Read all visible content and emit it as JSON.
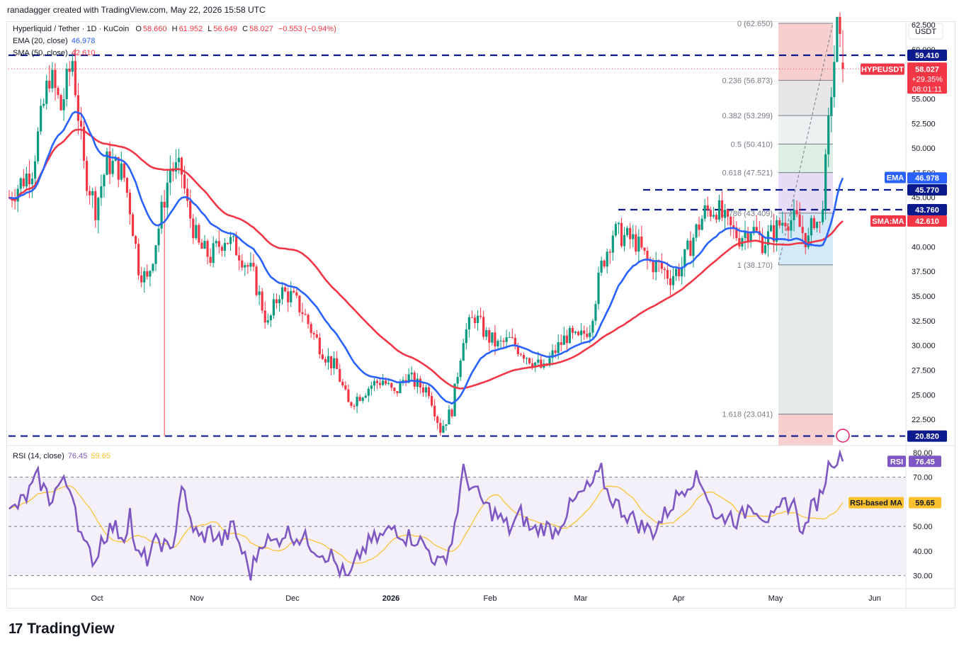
{
  "header": {
    "text": "ranadagger created with TradingView.com, May 22, 2026 15:58 UTC"
  },
  "legend": {
    "symbol": "Hyperliquid / Tether · 1D · KuCoin",
    "ohlc": {
      "O": "58.660",
      "H": "61.952",
      "L": "56.649",
      "C": "58.027",
      "chg": "−0.553 (−0.94%)"
    },
    "ema_label": "EMA (20, close)",
    "ema_value": "46.978",
    "sma_label": "SMA (50, close)",
    "sma_value": "42.610",
    "rsi_label": "RSI (14, close)",
    "rsi_value": "76.45",
    "rsi_ma_value": "59.65"
  },
  "watermark": "TradingView",
  "colors": {
    "up": "#089981",
    "down": "#f23645",
    "ema": "#2962ff",
    "sma": "#f23645",
    "rsi": "#7e57c2",
    "rsi_ma": "#fbc02d",
    "level": "#0b1a8c"
  },
  "chart_data": [
    {
      "type": "candlestick",
      "title": "Hyperliquid / Tether · 1D · KuCoin",
      "currency": "USDT",
      "ylim": [
        20.0,
        63.0
      ],
      "y_ticks": [
        "22.500",
        "25.000",
        "27.500",
        "30.000",
        "32.500",
        "35.000",
        "37.500",
        "40.000",
        "42.500",
        "45.000",
        "47.500",
        "50.000",
        "52.500",
        "55.000",
        "57.500",
        "60.000",
        "62.500"
      ],
      "x_ticks": [
        "Oct",
        "Nov",
        "Dec",
        "2026",
        "Feb",
        "Mar",
        "Apr",
        "May",
        "Jun"
      ],
      "price_path_anchors": [
        [
          0,
          45.0
        ],
        [
          8,
          48.0
        ],
        [
          14,
          57.5
        ],
        [
          18,
          54.0
        ],
        [
          22,
          59.0
        ],
        [
          26,
          48.0
        ],
        [
          30,
          44.0
        ],
        [
          34,
          48.5
        ],
        [
          38,
          48.0
        ],
        [
          40,
          47.0
        ],
        [
          42,
          44.0
        ],
        [
          45,
          38.0
        ],
        [
          48,
          36.5
        ],
        [
          52,
          42.0
        ],
        [
          56,
          48.0
        ],
        [
          60,
          47.5
        ],
        [
          62,
          44.0
        ],
        [
          66,
          40.0
        ],
        [
          70,
          39.0
        ],
        [
          75,
          41.0
        ],
        [
          80,
          39.5
        ],
        [
          85,
          37.0
        ],
        [
          90,
          32.0
        ],
        [
          94,
          35.5
        ],
        [
          98,
          35.0
        ],
        [
          102,
          33.5
        ],
        [
          106,
          31.0
        ],
        [
          110,
          29.0
        ],
        [
          114,
          27.5
        ],
        [
          118,
          24.0
        ],
        [
          122,
          25.0
        ],
        [
          126,
          26.0
        ],
        [
          130,
          26.5
        ],
        [
          134,
          25.0
        ],
        [
          138,
          27.0
        ],
        [
          142,
          26.0
        ],
        [
          146,
          25.5
        ],
        [
          150,
          21.5
        ],
        [
          154,
          23.5
        ],
        [
          158,
          31.0
        ],
        [
          162,
          33.0
        ],
        [
          166,
          31.0
        ],
        [
          170,
          30.0
        ],
        [
          174,
          30.5
        ],
        [
          178,
          29.5
        ],
        [
          182,
          28.5
        ],
        [
          186,
          27.5
        ],
        [
          190,
          29.5
        ],
        [
          194,
          31.0
        ],
        [
          198,
          30.5
        ],
        [
          202,
          32.0
        ],
        [
          206,
          38.0
        ],
        [
          210,
          41.5
        ],
        [
          214,
          41.0
        ],
        [
          218,
          40.5
        ],
        [
          222,
          38.5
        ],
        [
          226,
          38.0
        ],
        [
          230,
          37.0
        ],
        [
          234,
          38.0
        ],
        [
          238,
          41.0
        ],
        [
          242,
          43.5
        ],
        [
          246,
          44.0
        ],
        [
          250,
          42.0
        ],
        [
          254,
          41.0
        ],
        [
          258,
          42.0
        ],
        [
          262,
          40.5
        ],
        [
          266,
          41.5
        ],
        [
          270,
          43.0
        ],
        [
          274,
          42.5
        ],
        [
          278,
          40.5
        ],
        [
          280,
          43.0
        ],
        [
          282,
          42.0
        ],
        [
          284,
          48.0
        ],
        [
          286,
          56.0
        ],
        [
          288,
          62.0
        ],
        [
          290,
          58.0
        ]
      ],
      "last_close": 58.027,
      "series": [
        {
          "name": "EMA (20, close)",
          "last": 46.978
        },
        {
          "name": "SMA (50, close)",
          "last": 42.61
        }
      ],
      "horizontal_levels": [
        {
          "label": "59.410",
          "value": 59.41
        },
        {
          "label": "45.770",
          "value": 45.77
        },
        {
          "label": "43.760",
          "value": 43.76
        },
        {
          "label": "20.820",
          "value": 20.82
        }
      ],
      "fibonacci": [
        {
          "label": "0 (62.650)",
          "ratio": 0,
          "value": 62.65
        },
        {
          "label": "0.236 (56.873)",
          "ratio": 0.236,
          "value": 56.873
        },
        {
          "label": "0.382 (53.299)",
          "ratio": 0.382,
          "value": 53.299
        },
        {
          "label": "0.5 (50.410)",
          "ratio": 0.5,
          "value": 50.41
        },
        {
          "label": "0.618 (47.521)",
          "ratio": 0.618,
          "value": 47.521
        },
        {
          "label": "0.786 (43.409)",
          "ratio": 0.786,
          "value": 43.409
        },
        {
          "label": "1 (38.170)",
          "ratio": 1,
          "value": 38.17
        },
        {
          "label": "1.618 (23.041)",
          "ratio": 1.618,
          "value": 23.041
        }
      ],
      "price_labels": [
        {
          "label": "59.410",
          "value": 59.41
        },
        {
          "label": "HYPEUSDT",
          "value": 57.9
        },
        {
          "label": "58.027",
          "value": 58.027
        },
        {
          "label": "+29.35%",
          "value": 58.027
        },
        {
          "label": "08:01:11",
          "value": 58.027
        },
        {
          "label": "EMA",
          "value": 46.978
        },
        {
          "label": "46.978",
          "value": 46.978
        },
        {
          "label": "45.770",
          "value": 45.77
        },
        {
          "label": "43.760",
          "value": 43.76
        },
        {
          "label": "SMA:MA",
          "value": 42.61
        },
        {
          "label": "42.610",
          "value": 42.61
        },
        {
          "label": "20.820",
          "value": 20.82
        }
      ]
    },
    {
      "type": "line",
      "title": "RSI (14, close)",
      "ylim": [
        25,
        82
      ],
      "y_ticks": [
        "30.00",
        "40.00",
        "50.00",
        "60.00",
        "70.00",
        "80.00"
      ],
      "bands": [
        30,
        50,
        70
      ],
      "rsi_anchors": [
        [
          0,
          55
        ],
        [
          6,
          62
        ],
        [
          10,
          70
        ],
        [
          14,
          61
        ],
        [
          18,
          68
        ],
        [
          22,
          65
        ],
        [
          24,
          52
        ],
        [
          26,
          42
        ],
        [
          30,
          36
        ],
        [
          32,
          45
        ],
        [
          36,
          50
        ],
        [
          40,
          46
        ],
        [
          42,
          56
        ],
        [
          44,
          38
        ],
        [
          48,
          37
        ],
        [
          52,
          45
        ],
        [
          56,
          39
        ],
        [
          58,
          50
        ],
        [
          60,
          68
        ],
        [
          62,
          55
        ],
        [
          66,
          45
        ],
        [
          70,
          48
        ],
        [
          74,
          44
        ],
        [
          78,
          50
        ],
        [
          80,
          43
        ],
        [
          84,
          31
        ],
        [
          88,
          45
        ],
        [
          92,
          43
        ],
        [
          96,
          48
        ],
        [
          100,
          46
        ],
        [
          104,
          44
        ],
        [
          108,
          40
        ],
        [
          112,
          38
        ],
        [
          114,
          34
        ],
        [
          118,
          28
        ],
        [
          122,
          39
        ],
        [
          126,
          44
        ],
        [
          130,
          46
        ],
        [
          134,
          50
        ],
        [
          138,
          46
        ],
        [
          142,
          45
        ],
        [
          146,
          40
        ],
        [
          150,
          34
        ],
        [
          154,
          44
        ],
        [
          158,
          72
        ],
        [
          162,
          64
        ],
        [
          166,
          58
        ],
        [
          170,
          54
        ],
        [
          174,
          49
        ],
        [
          178,
          55
        ],
        [
          182,
          48
        ],
        [
          186,
          50
        ],
        [
          190,
          48
        ],
        [
          194,
          56
        ],
        [
          198,
          62
        ],
        [
          202,
          66
        ],
        [
          206,
          72
        ],
        [
          208,
          64
        ],
        [
          212,
          58
        ],
        [
          216,
          54
        ],
        [
          220,
          50
        ],
        [
          224,
          48
        ],
        [
          230,
          58
        ],
        [
          234,
          65
        ],
        [
          238,
          70
        ],
        [
          242,
          66
        ],
        [
          246,
          52
        ],
        [
          250,
          55
        ],
        [
          254,
          52
        ],
        [
          258,
          60
        ],
        [
          262,
          55
        ],
        [
          266,
          52
        ],
        [
          270,
          60
        ],
        [
          274,
          58
        ],
        [
          276,
          45
        ],
        [
          278,
          55
        ],
        [
          282,
          62
        ],
        [
          284,
          70
        ],
        [
          286,
          78
        ],
        [
          290,
          76.45
        ]
      ],
      "series": [
        {
          "name": "RSI",
          "last": 76.45
        },
        {
          "name": "RSI-based MA",
          "last": 59.65
        }
      ],
      "price_labels": [
        {
          "label": "RSI",
          "value": 76.45
        },
        {
          "label": "76.45",
          "value": 76.45
        },
        {
          "label": "RSI-based MA",
          "value": 59.65
        },
        {
          "label": "59.65",
          "value": 59.65
        }
      ]
    }
  ]
}
